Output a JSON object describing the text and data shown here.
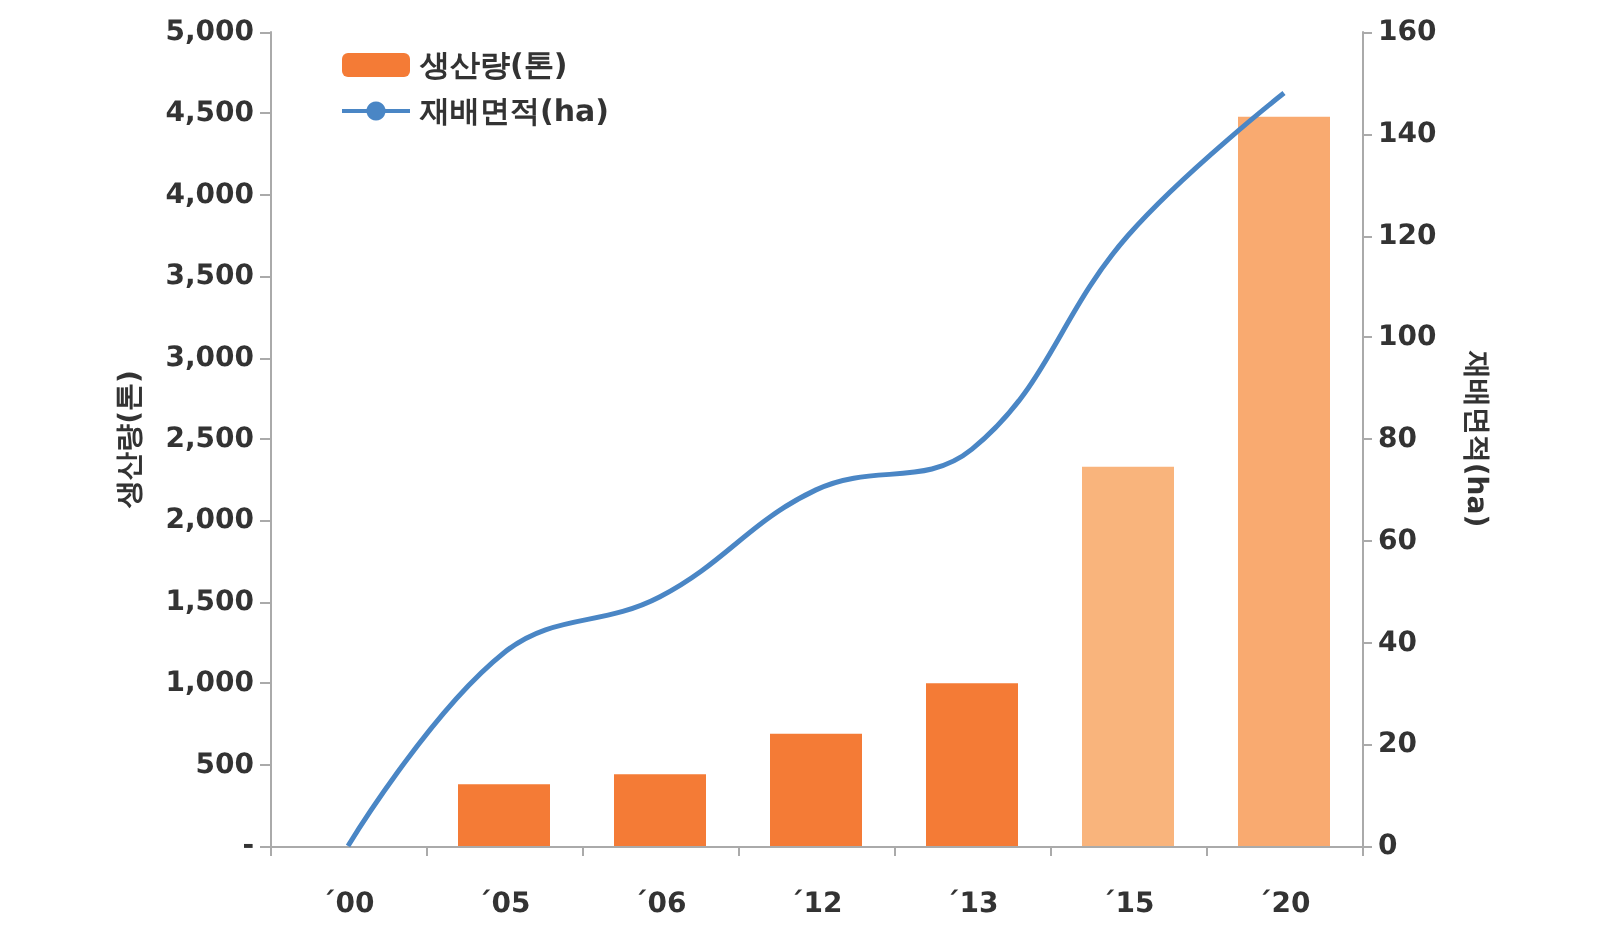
{
  "chart_data": {
    "type": "bar",
    "categories": [
      "´00",
      "´05",
      "´06",
      "´12",
      "´13",
      "´15",
      "´20"
    ],
    "ylabel": "생산량(톤)",
    "y2label": "재배면적(ha)",
    "series": [
      {
        "name": "생산량(톤)",
        "color": "#f47b36",
        "colors": [
          "#f47b36",
          "#f47b36",
          "#f47b36",
          "#f47b36",
          "#f47b36",
          "#f9b47c",
          "#f9aa70"
        ],
        "values": [
          null,
          380,
          440,
          690,
          1000,
          2330,
          4480
        ]
      },
      {
        "name": "재배면적(ha)",
        "type": "line",
        "axis": "y2",
        "color": "#4a86c5",
        "values": [
          0,
          38,
          49,
          70,
          78,
          120,
          148
        ]
      }
    ],
    "ylim": [
      0,
      5000
    ],
    "yticks": [
      {
        "value": 0,
        "label": "-"
      },
      {
        "value": 500,
        "label": "500"
      },
      {
        "value": 1000,
        "label": "1,000"
      },
      {
        "value": 1500,
        "label": "1,500"
      },
      {
        "value": 2000,
        "label": "2,000"
      },
      {
        "value": 2500,
        "label": "2,500"
      },
      {
        "value": 3000,
        "label": "3,000"
      },
      {
        "value": 3500,
        "label": "3,500"
      },
      {
        "value": 4000,
        "label": "4,000"
      },
      {
        "value": 4500,
        "label": "4,500"
      },
      {
        "value": 5000,
        "label": "5,000"
      }
    ],
    "y2lim": [
      0,
      160
    ],
    "y2ticks": [
      0,
      20,
      40,
      60,
      80,
      100,
      120,
      140,
      160
    ],
    "grid": false,
    "legend": "top left",
    "marker": "none",
    "line_style": "solid"
  }
}
